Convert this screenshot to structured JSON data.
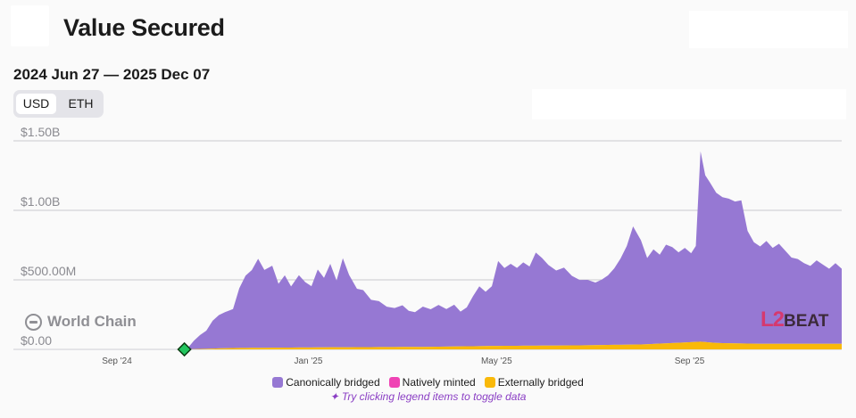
{
  "header": {
    "title": "Value Secured",
    "date_range": "2024 Jun 27 — 2025 Dec 07"
  },
  "currency_toggle": {
    "options": [
      "USD",
      "ETH"
    ],
    "selected": "USD"
  },
  "watermark": {
    "project": "World Chain",
    "brand_l2": "L2",
    "brand_beat": "BEAT"
  },
  "hint": "Try clicking legend items to toggle data",
  "chart_data": {
    "type": "area",
    "stacked": true,
    "grid": true,
    "legend_position": "bottom-center",
    "y_ticks": [
      {
        "value": 0,
        "label": "$0.00"
      },
      {
        "value": 500000000,
        "label": "$500.00M"
      },
      {
        "value": 1000000000,
        "label": "$1.00B"
      },
      {
        "value": 1500000000,
        "label": "$1.50B"
      }
    ],
    "ylim": [
      0,
      1500000000
    ],
    "x_ticks": [
      "Sep '24",
      "Jan '25",
      "May '25",
      "Sep '25"
    ],
    "x_tick_dates": [
      "2024-09-01",
      "2025-01-01",
      "2025-05-01",
      "2025-09-01"
    ],
    "xlim": [
      "2024-06-27",
      "2025-12-07"
    ],
    "marker": {
      "date": "2024-10-14",
      "value": 0,
      "color": "#22c55e"
    },
    "series": [
      {
        "name": "Canonically bridged",
        "color": "#9678d3",
        "points": [
          [
            "2024-10-14",
            0
          ],
          [
            "2024-10-17",
            20000000
          ],
          [
            "2024-10-20",
            60000000
          ],
          [
            "2024-10-24",
            100000000
          ],
          [
            "2024-10-28",
            130000000
          ],
          [
            "2024-11-01",
            200000000
          ],
          [
            "2024-11-05",
            240000000
          ],
          [
            "2024-11-09",
            260000000
          ],
          [
            "2024-11-14",
            280000000
          ],
          [
            "2024-11-18",
            430000000
          ],
          [
            "2024-11-22",
            520000000
          ],
          [
            "2024-11-26",
            560000000
          ],
          [
            "2024-11-30",
            640000000
          ],
          [
            "2024-12-04",
            560000000
          ],
          [
            "2024-12-09",
            590000000
          ],
          [
            "2024-12-13",
            460000000
          ],
          [
            "2024-12-17",
            520000000
          ],
          [
            "2024-12-21",
            440000000
          ],
          [
            "2024-12-26",
            520000000
          ],
          [
            "2024-12-30",
            470000000
          ],
          [
            "2025-01-03",
            440000000
          ],
          [
            "2025-01-07",
            560000000
          ],
          [
            "2025-01-11",
            500000000
          ],
          [
            "2025-01-15",
            600000000
          ],
          [
            "2025-01-19",
            480000000
          ],
          [
            "2025-01-23",
            640000000
          ],
          [
            "2025-01-27",
            520000000
          ],
          [
            "2025-02-01",
            420000000
          ],
          [
            "2025-02-05",
            410000000
          ],
          [
            "2025-02-10",
            340000000
          ],
          [
            "2025-02-15",
            330000000
          ],
          [
            "2025-02-20",
            290000000
          ],
          [
            "2025-02-25",
            280000000
          ],
          [
            "2025-03-02",
            300000000
          ],
          [
            "2025-03-06",
            260000000
          ],
          [
            "2025-03-10",
            250000000
          ],
          [
            "2025-03-15",
            290000000
          ],
          [
            "2025-03-20",
            270000000
          ],
          [
            "2025-03-25",
            300000000
          ],
          [
            "2025-03-30",
            270000000
          ],
          [
            "2025-04-04",
            300000000
          ],
          [
            "2025-04-08",
            250000000
          ],
          [
            "2025-04-12",
            280000000
          ],
          [
            "2025-04-16",
            360000000
          ],
          [
            "2025-04-20",
            430000000
          ],
          [
            "2025-04-24",
            390000000
          ],
          [
            "2025-04-28",
            430000000
          ],
          [
            "2025-05-02",
            610000000
          ],
          [
            "2025-05-06",
            560000000
          ],
          [
            "2025-05-10",
            590000000
          ],
          [
            "2025-05-14",
            560000000
          ],
          [
            "2025-05-18",
            600000000
          ],
          [
            "2025-05-22",
            570000000
          ],
          [
            "2025-05-26",
            670000000
          ],
          [
            "2025-05-30",
            630000000
          ],
          [
            "2025-06-03",
            580000000
          ],
          [
            "2025-06-08",
            540000000
          ],
          [
            "2025-06-13",
            560000000
          ],
          [
            "2025-06-18",
            500000000
          ],
          [
            "2025-06-23",
            470000000
          ],
          [
            "2025-06-28",
            470000000
          ],
          [
            "2025-07-03",
            450000000
          ],
          [
            "2025-07-07",
            470000000
          ],
          [
            "2025-07-11",
            500000000
          ],
          [
            "2025-07-15",
            550000000
          ],
          [
            "2025-07-19",
            620000000
          ],
          [
            "2025-07-23",
            710000000
          ],
          [
            "2025-07-27",
            850000000
          ],
          [
            "2025-08-01",
            750000000
          ],
          [
            "2025-08-05",
            620000000
          ],
          [
            "2025-08-09",
            680000000
          ],
          [
            "2025-08-13",
            640000000
          ],
          [
            "2025-08-17",
            710000000
          ],
          [
            "2025-08-21",
            690000000
          ],
          [
            "2025-08-25",
            650000000
          ],
          [
            "2025-08-29",
            680000000
          ],
          [
            "2025-09-02",
            640000000
          ],
          [
            "2025-09-05",
            690000000
          ],
          [
            "2025-09-08",
            1370000000
          ],
          [
            "2025-09-11",
            1200000000
          ],
          [
            "2025-09-14",
            1150000000
          ],
          [
            "2025-09-18",
            1080000000
          ],
          [
            "2025-09-22",
            1050000000
          ],
          [
            "2025-09-26",
            1040000000
          ],
          [
            "2025-09-30",
            1020000000
          ],
          [
            "2025-10-04",
            1030000000
          ],
          [
            "2025-10-08",
            810000000
          ],
          [
            "2025-10-12",
            730000000
          ],
          [
            "2025-10-16",
            700000000
          ],
          [
            "2025-10-20",
            740000000
          ],
          [
            "2025-10-24",
            690000000
          ],
          [
            "2025-10-28",
            720000000
          ],
          [
            "2025-11-01",
            670000000
          ],
          [
            "2025-11-05",
            620000000
          ],
          [
            "2025-11-09",
            610000000
          ],
          [
            "2025-11-13",
            580000000
          ],
          [
            "2025-11-17",
            560000000
          ],
          [
            "2025-11-21",
            600000000
          ],
          [
            "2025-11-25",
            570000000
          ],
          [
            "2025-11-29",
            540000000
          ],
          [
            "2025-12-03",
            580000000
          ],
          [
            "2025-12-07",
            540000000
          ]
        ]
      },
      {
        "name": "Natively minted",
        "color": "#ef43b4",
        "points": [
          [
            "2024-10-14",
            0
          ],
          [
            "2025-12-07",
            0
          ]
        ]
      },
      {
        "name": "Externally bridged",
        "color": "#f9b90a",
        "points": [
          [
            "2024-10-14",
            0
          ],
          [
            "2024-11-15",
            10000000
          ],
          [
            "2025-01-15",
            15000000
          ],
          [
            "2025-03-15",
            18000000
          ],
          [
            "2025-05-01",
            25000000
          ],
          [
            "2025-06-15",
            28000000
          ],
          [
            "2025-08-01",
            35000000
          ],
          [
            "2025-09-08",
            55000000
          ],
          [
            "2025-09-20",
            45000000
          ],
          [
            "2025-10-15",
            40000000
          ],
          [
            "2025-12-07",
            40000000
          ]
        ]
      }
    ]
  }
}
